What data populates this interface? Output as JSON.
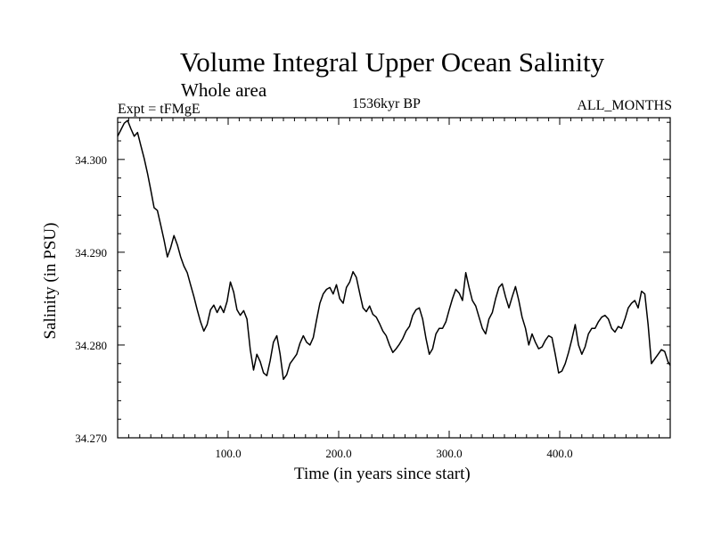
{
  "chart_data": {
    "type": "line",
    "title": "Volume Integral Upper Ocean Salinity",
    "subtitle": "Whole area",
    "experiment_label": "Expt = tFMgE",
    "time_label": "1536kyr BP",
    "months_label": "ALL_MONTHS",
    "xlabel": "Time (in years since start)",
    "ylabel": "Salinity (in PSU)",
    "xlim": [
      0,
      500
    ],
    "ylim": [
      34.27,
      34.3045
    ],
    "x_ticks": [
      100,
      200,
      300,
      400
    ],
    "x_tick_labels": [
      "100.0",
      "200.0",
      "300.0",
      "400.0"
    ],
    "y_ticks": [
      34.27,
      34.28,
      34.29,
      34.3
    ],
    "y_tick_labels": [
      "34.270",
      "34.280",
      "34.290",
      "34.300"
    ],
    "series": [
      {
        "name": "Salinity",
        "color": "#000000",
        "x": [
          0,
          3,
          6,
          9,
          12,
          15,
          18,
          21,
          24,
          27,
          30,
          33,
          36,
          39,
          42,
          45,
          48,
          51,
          54,
          57,
          60,
          63,
          66,
          69,
          72,
          75,
          78,
          81,
          84,
          87,
          90,
          93,
          96,
          99,
          102,
          105,
          108,
          111,
          114,
          117,
          120,
          123,
          126,
          129,
          132,
          135,
          138,
          141,
          144,
          147,
          150,
          153,
          156,
          159,
          162,
          165,
          168,
          171,
          174,
          177,
          180,
          183,
          186,
          189,
          192,
          195,
          198,
          201,
          204,
          207,
          210,
          213,
          216,
          219,
          222,
          225,
          228,
          231,
          234,
          237,
          240,
          243,
          246,
          249,
          252,
          255,
          258,
          261,
          264,
          267,
          270,
          273,
          276,
          279,
          282,
          285,
          288,
          291,
          294,
          297,
          300,
          303,
          306,
          309,
          312,
          315,
          318,
          321,
          324,
          327,
          330,
          333,
          336,
          339,
          342,
          345,
          348,
          351,
          354,
          357,
          360,
          363,
          366,
          369,
          372,
          375,
          378,
          381,
          384,
          387,
          390,
          393,
          396,
          399,
          402,
          405,
          408,
          411,
          414,
          417,
          420,
          423,
          426,
          429,
          432,
          435,
          438,
          441,
          444,
          447,
          450,
          453,
          456,
          459,
          462,
          465,
          468,
          471,
          474,
          477,
          480,
          483,
          486,
          489,
          492,
          495,
          498,
          500
        ],
        "values": [
          34.3025,
          34.3032,
          34.3039,
          34.3042,
          34.3033,
          34.3025,
          34.3029,
          34.3015,
          34.3001,
          34.2985,
          34.2967,
          34.2948,
          34.2945,
          34.2929,
          34.2913,
          34.2895,
          34.2905,
          34.2918,
          34.2908,
          34.2895,
          34.2885,
          34.2878,
          34.2865,
          34.2852,
          34.2838,
          34.2825,
          34.2815,
          34.2822,
          34.2838,
          34.2843,
          34.2835,
          34.2842,
          34.2835,
          34.2847,
          34.2868,
          34.2857,
          34.2838,
          34.2832,
          34.2837,
          34.2828,
          34.2795,
          34.2773,
          34.279,
          34.2782,
          34.277,
          34.2767,
          34.2783,
          34.2803,
          34.281,
          34.279,
          34.2763,
          34.2768,
          34.278,
          34.2785,
          34.279,
          34.2802,
          34.281,
          34.2803,
          34.28,
          34.2808,
          34.2827,
          34.2845,
          34.2855,
          34.286,
          34.2862,
          34.2855,
          34.2865,
          34.285,
          34.2845,
          34.2862,
          34.2868,
          34.2879,
          34.2873,
          34.2856,
          34.284,
          34.2836,
          34.2842,
          34.2833,
          34.283,
          34.2823,
          34.2815,
          34.281,
          34.28,
          34.2792,
          34.2796,
          34.2801,
          34.2807,
          34.2815,
          34.282,
          34.2832,
          34.2838,
          34.284,
          34.2828,
          34.2807,
          34.279,
          34.2796,
          34.2812,
          34.2818,
          34.2818,
          34.2825,
          34.2838,
          34.285,
          34.286,
          34.2856,
          34.2848,
          34.2878,
          34.2862,
          34.2848,
          34.2842,
          34.283,
          34.2818,
          34.2812,
          34.2828,
          34.2835,
          34.285,
          34.2862,
          34.2866,
          34.2852,
          34.284,
          34.2852,
          34.2863,
          34.2848,
          34.283,
          34.2818,
          34.28,
          34.2812,
          34.2803,
          34.2796,
          34.2798,
          34.2805,
          34.281,
          34.2808,
          34.279,
          34.277,
          34.2772,
          34.278,
          34.2792,
          34.2806,
          34.2822,
          34.28,
          34.279,
          34.2798,
          34.2812,
          34.2818,
          34.2818,
          34.2825,
          34.283,
          34.2832,
          34.2828,
          34.2818,
          34.2814,
          34.282,
          34.2818,
          34.2828,
          34.284,
          34.2845,
          34.2848,
          34.284,
          34.2858,
          34.2855,
          34.2822,
          34.278,
          34.2785,
          34.279,
          34.2795,
          34.2793,
          34.2782,
          34.2778
        ]
      }
    ]
  }
}
